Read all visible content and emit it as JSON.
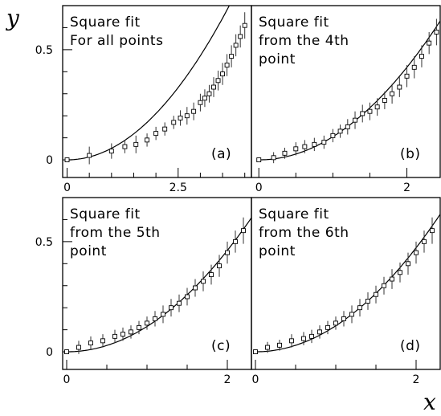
{
  "figure": {
    "y_label": "y",
    "x_label": "x"
  },
  "chart_data": [
    {
      "type": "scatter",
      "panel_label": "(a)",
      "annotation": [
        "Square fit",
        "For all points"
      ],
      "xlim": [
        -0.1,
        4.15
      ],
      "ylim": [
        -0.08,
        0.7
      ],
      "xticks": [
        {
          "v": 0,
          "label": "0"
        },
        {
          "v": 2.5,
          "label": "2.5"
        }
      ],
      "xminor": [
        0.5,
        1,
        1.5,
        2,
        3,
        3.5,
        4
      ],
      "yticks": [
        {
          "v": 0,
          "label": "0"
        },
        {
          "v": 0.5,
          "label": "0.5"
        }
      ],
      "yminor": [
        0.1,
        0.2,
        0.3,
        0.4,
        0.6
      ],
      "fit_coeff": 0.0525,
      "points_x": [
        0,
        0.5,
        1.0,
        1.3,
        1.55,
        1.8,
        2.0,
        2.2,
        2.4,
        2.55,
        2.7,
        2.85,
        3.0,
        3.1,
        3.2,
        3.3,
        3.4,
        3.5,
        3.6,
        3.7,
        3.8,
        3.9,
        4.0
      ],
      "points_y": [
        0,
        0.02,
        0.04,
        0.06,
        0.07,
        0.09,
        0.12,
        0.14,
        0.17,
        0.19,
        0.2,
        0.22,
        0.26,
        0.28,
        0.3,
        0.33,
        0.36,
        0.39,
        0.43,
        0.47,
        0.52,
        0.56,
        0.61
      ],
      "points_err": [
        0.005,
        0.04,
        0.035,
        0.03,
        0.04,
        0.03,
        0.03,
        0.03,
        0.03,
        0.035,
        0.04,
        0.04,
        0.04,
        0.04,
        0.04,
        0.045,
        0.045,
        0.05,
        0.05,
        0.05,
        0.05,
        0.05,
        0.06
      ]
    },
    {
      "type": "scatter",
      "panel_label": "(b)",
      "annotation": [
        "Square fit",
        "from the 4th",
        "point"
      ],
      "xlim": [
        -0.1,
        2.45
      ],
      "ylim": [
        -0.08,
        0.7
      ],
      "xticks": [
        {
          "v": 0,
          "label": "0"
        },
        {
          "v": 2,
          "label": "2"
        }
      ],
      "xminor": [
        0.5,
        1,
        1.5
      ],
      "yticks": [],
      "yminor": [],
      "fit_coeff": 0.105,
      "points_x": [
        0,
        0.2,
        0.35,
        0.5,
        0.62,
        0.75,
        0.88,
        1.0,
        1.1,
        1.2,
        1.3,
        1.4,
        1.5,
        1.6,
        1.7,
        1.8,
        1.9,
        2.0,
        2.1,
        2.2,
        2.3,
        2.4
      ],
      "points_y": [
        0,
        0.01,
        0.03,
        0.05,
        0.06,
        0.07,
        0.08,
        0.11,
        0.13,
        0.15,
        0.18,
        0.21,
        0.22,
        0.24,
        0.27,
        0.3,
        0.33,
        0.38,
        0.42,
        0.47,
        0.53,
        0.58
      ],
      "points_err": [
        0.005,
        0.025,
        0.025,
        0.03,
        0.03,
        0.03,
        0.03,
        0.03,
        0.03,
        0.035,
        0.04,
        0.04,
        0.04,
        0.04,
        0.04,
        0.045,
        0.045,
        0.05,
        0.05,
        0.05,
        0.05,
        0.06
      ]
    },
    {
      "type": "scatter",
      "panel_label": "(c)",
      "annotation": [
        "Square fit",
        "from the 5th",
        "point"
      ],
      "xlim": [
        -0.05,
        2.3
      ],
      "ylim": [
        -0.08,
        0.7
      ],
      "xticks": [
        {
          "v": 0,
          "label": "0"
        },
        {
          "v": 2,
          "label": "2"
        }
      ],
      "xminor": [
        0.5,
        1,
        1.5
      ],
      "yticks": [
        {
          "v": 0,
          "label": "0"
        },
        {
          "v": 0.5,
          "label": "0.5"
        }
      ],
      "yminor": [
        0.1,
        0.2,
        0.3,
        0.4,
        0.6
      ],
      "fit_coeff": 0.115,
      "points_x": [
        0,
        0.15,
        0.3,
        0.45,
        0.6,
        0.7,
        0.8,
        0.9,
        1.0,
        1.1,
        1.2,
        1.3,
        1.4,
        1.5,
        1.6,
        1.7,
        1.8,
        1.9,
        2.0,
        2.1,
        2.2
      ],
      "points_y": [
        0,
        0.02,
        0.04,
        0.05,
        0.07,
        0.08,
        0.09,
        0.11,
        0.13,
        0.15,
        0.17,
        0.2,
        0.22,
        0.25,
        0.29,
        0.32,
        0.35,
        0.39,
        0.45,
        0.5,
        0.55
      ],
      "points_err": [
        0.005,
        0.03,
        0.03,
        0.03,
        0.03,
        0.03,
        0.03,
        0.03,
        0.03,
        0.035,
        0.04,
        0.04,
        0.04,
        0.04,
        0.04,
        0.045,
        0.045,
        0.05,
        0.05,
        0.05,
        0.06
      ]
    },
    {
      "type": "scatter",
      "panel_label": "(d)",
      "annotation": [
        "Square fit",
        "from the 6th",
        "point"
      ],
      "xlim": [
        -0.05,
        2.3
      ],
      "ylim": [
        -0.08,
        0.7
      ],
      "xticks": [
        {
          "v": 0,
          "label": "0"
        },
        {
          "v": 2,
          "label": "2"
        }
      ],
      "xminor": [
        0.5,
        1,
        1.5
      ],
      "yticks": [],
      "yminor": [],
      "fit_coeff": 0.118,
      "points_x": [
        0,
        0.15,
        0.3,
        0.45,
        0.6,
        0.7,
        0.8,
        0.9,
        1.0,
        1.1,
        1.2,
        1.3,
        1.4,
        1.5,
        1.6,
        1.7,
        1.8,
        1.9,
        2.0,
        2.1,
        2.2
      ],
      "points_y": [
        0,
        0.02,
        0.03,
        0.05,
        0.06,
        0.07,
        0.09,
        0.11,
        0.13,
        0.15,
        0.17,
        0.2,
        0.23,
        0.26,
        0.3,
        0.33,
        0.36,
        0.4,
        0.45,
        0.5,
        0.55
      ],
      "points_err": [
        0.005,
        0.025,
        0.025,
        0.03,
        0.03,
        0.03,
        0.03,
        0.03,
        0.03,
        0.035,
        0.04,
        0.04,
        0.04,
        0.04,
        0.04,
        0.045,
        0.045,
        0.05,
        0.05,
        0.05,
        0.06
      ]
    }
  ]
}
